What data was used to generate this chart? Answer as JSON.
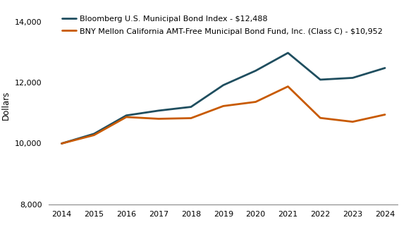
{
  "years": [
    2014,
    2015,
    2016,
    2017,
    2018,
    2019,
    2020,
    2021,
    2022,
    2023,
    2024
  ],
  "series1_label": "Bloomberg U.S. Municipal Bond Index - $12,488",
  "series1_values": [
    10000,
    10318,
    10924,
    11083,
    11206,
    11923,
    12398,
    12986,
    12104,
    12163,
    12488
  ],
  "series1_color": "#1f4e5f",
  "series2_label": "BNY Mellon California AMT-Free Municipal Bond Fund, Inc. (Class C) - $10,952",
  "series2_values": [
    10000,
    10276,
    10871,
    10814,
    10835,
    11234,
    11371,
    11879,
    10842,
    10716,
    10952
  ],
  "series2_color": "#c85a00",
  "ylim": [
    8000,
    14500
  ],
  "yticks": [
    8000,
    10000,
    12000,
    14000
  ],
  "ylabel": "Dollars",
  "line_width": 2.0,
  "background_color": "#ffffff",
  "legend_fontsize": 8.0,
  "axis_fontsize": 8.5,
  "tick_fontsize": 8.0
}
